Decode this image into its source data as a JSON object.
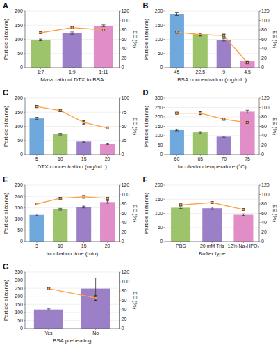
{
  "chart_data": [
    {
      "type": "bar",
      "title": "A",
      "categories": [
        "1:7",
        "1:9",
        "1:11"
      ],
      "xlabel": "Mass ratio of DTX to BSA",
      "ylabel": "Particle size(nm)",
      "y2label": "EE (%)",
      "ylim": [
        0,
        200
      ],
      "yticks": [
        0,
        50,
        100,
        150,
        200
      ],
      "y2lim": [
        0,
        120
      ],
      "y2ticks": [
        0,
        20,
        40,
        60,
        80,
        100,
        120
      ],
      "series": [
        {
          "type": "bar",
          "colors": [
            "#9DC36B",
            "#9B7FC7",
            "#E08DC8"
          ],
          "values": [
            98,
            122,
            148
          ],
          "errors": [
            3,
            4,
            3
          ]
        },
        {
          "type": "line",
          "axis": "y2",
          "color": "#FFA040",
          "marker": "square",
          "values": [
            74,
            85,
            80
          ],
          "errors": [
            2,
            2,
            2
          ]
        }
      ]
    },
    {
      "type": "bar",
      "title": "B",
      "categories": [
        "45",
        "22.5",
        "9",
        "4.5"
      ],
      "xlabel": "BSA concentration (mg/mL.)",
      "ylabel": "Particle size(nm)",
      "y2label": "EE (%)",
      "ylim": [
        0,
        200
      ],
      "yticks": [
        0,
        50,
        100,
        150,
        200
      ],
      "y2lim": [
        0,
        120
      ],
      "y2ticks": [
        0,
        20,
        40,
        60,
        80,
        100,
        120
      ],
      "series": [
        {
          "type": "bar",
          "colors": [
            "#6FA8DC",
            "#9DC36B",
            "#9B7FC7",
            "#E08DC8"
          ],
          "values": [
            190,
            118,
            98,
            22
          ],
          "errors": [
            6,
            4,
            4,
            2
          ]
        },
        {
          "type": "line",
          "axis": "y2",
          "color": "#FFA040",
          "marker": "square",
          "values": [
            75,
            70,
            68,
            10
          ],
          "errors": [
            2,
            3,
            3,
            2
          ]
        }
      ]
    },
    {
      "type": "bar",
      "title": "C",
      "categories": [
        "5",
        "10",
        "15",
        "20"
      ],
      "xlabel": "DTX concentration (mg/mL.)",
      "ylabel": "Particle size(nm)",
      "y2label": "EE (%)",
      "ylim": [
        0,
        200
      ],
      "yticks": [
        0,
        50,
        100,
        150,
        200
      ],
      "y2lim": [
        0,
        100
      ],
      "y2ticks": [
        0,
        25,
        50,
        75,
        100
      ],
      "series": [
        {
          "type": "bar",
          "colors": [
            "#6FA8DC",
            "#9DC36B",
            "#9B7FC7",
            "#E08DC8"
          ],
          "values": [
            128,
            72,
            46,
            37
          ],
          "errors": [
            4,
            3,
            2,
            2
          ]
        },
        {
          "type": "line",
          "axis": "y2",
          "color": "#FFA040",
          "marker": "square",
          "values": [
            85,
            78,
            57,
            47
          ],
          "errors": [
            2,
            2,
            3,
            2
          ]
        }
      ]
    },
    {
      "type": "bar",
      "title": "D",
      "categories": [
        "60",
        "65",
        "70",
        "75"
      ],
      "xlabel": "Incubation temperature (°C)",
      "ylabel": "Particle size(nm)",
      "y2label": "EE (%)",
      "ylim": [
        0,
        300
      ],
      "yticks": [
        0,
        50,
        100,
        150,
        200,
        250,
        300
      ],
      "y2lim": [
        0,
        120
      ],
      "y2ticks": [
        0,
        20,
        40,
        60,
        80,
        100,
        120
      ],
      "series": [
        {
          "type": "bar",
          "colors": [
            "#6FA8DC",
            "#9DC36B",
            "#9B7FC7",
            "#E08DC8"
          ],
          "values": [
            130,
            118,
            95,
            228
          ],
          "errors": [
            4,
            4,
            3,
            8
          ]
        },
        {
          "type": "line",
          "axis": "y2",
          "color": "#FFA040",
          "marker": "square",
          "values": [
            88,
            88,
            75,
            68
          ],
          "errors": [
            2,
            3,
            2,
            2
          ]
        }
      ]
    },
    {
      "type": "bar",
      "title": "E",
      "categories": [
        "3",
        "10",
        "15",
        "20"
      ],
      "xlabel": "Incubation time (min)",
      "ylabel": "Particle size(nm)",
      "y2label": "EE (%)",
      "ylim": [
        0,
        250
      ],
      "yticks": [
        0,
        50,
        100,
        150,
        200,
        250
      ],
      "y2lim": [
        0,
        120
      ],
      "y2ticks": [
        0,
        20,
        40,
        60,
        80,
        100,
        120
      ],
      "series": [
        {
          "type": "bar",
          "colors": [
            "#6FA8DC",
            "#9DC36B",
            "#9B7FC7",
            "#E08DC8"
          ],
          "values": [
            118,
            143,
            153,
            175
          ],
          "errors": [
            4,
            4,
            4,
            5
          ]
        },
        {
          "type": "line",
          "axis": "y2",
          "color": "#FFA040",
          "marker": "square",
          "values": [
            80,
            92,
            95,
            92
          ],
          "errors": [
            2,
            2,
            3,
            2
          ]
        }
      ]
    },
    {
      "type": "bar",
      "title": "F",
      "categories": [
        "PBS",
        "20 mM Tris",
        "12% Na₂HPO₄"
      ],
      "xlabel": "Buffer type",
      "ylabel": "Particle size(nm)",
      "y2label": "EE (%)",
      "ylim": [
        0,
        200
      ],
      "yticks": [
        0,
        50,
        100,
        150,
        200
      ],
      "y2lim": [
        0,
        120
      ],
      "y2ticks": [
        0,
        20,
        40,
        60,
        80,
        100,
        120
      ],
      "series": [
        {
          "type": "bar",
          "colors": [
            "#9DC36B",
            "#9B7FC7",
            "#E08DC8"
          ],
          "values": [
            120,
            118,
            95
          ],
          "errors": [
            3,
            4,
            3
          ]
        },
        {
          "type": "line",
          "axis": "y2",
          "color": "#FFA040",
          "marker": "square",
          "values": [
            78,
            83,
            68
          ],
          "errors": [
            2,
            2,
            2
          ]
        }
      ]
    },
    {
      "type": "bar",
      "title": "G",
      "categories": [
        "Yes",
        "No"
      ],
      "xlabel": "BSA preheating",
      "ylabel": "Particle size(nm)",
      "y2label": "EE (%)",
      "ylim": [
        0,
        350
      ],
      "yticks": [
        0,
        50,
        100,
        150,
        200,
        250,
        300,
        350
      ],
      "y2lim": [
        0,
        120
      ],
      "y2ticks": [
        0,
        20,
        40,
        60,
        80,
        100,
        120
      ],
      "series": [
        {
          "type": "bar",
          "colors": [
            "#9B7FC7",
            "#9B7FC7"
          ],
          "values": [
            118,
            248
          ],
          "errors": [
            4,
            65
          ]
        },
        {
          "type": "line",
          "axis": "y2",
          "color": "#FFA040",
          "marker": "square",
          "values": [
            85,
            65
          ],
          "errors": [
            2,
            5
          ]
        }
      ]
    }
  ]
}
